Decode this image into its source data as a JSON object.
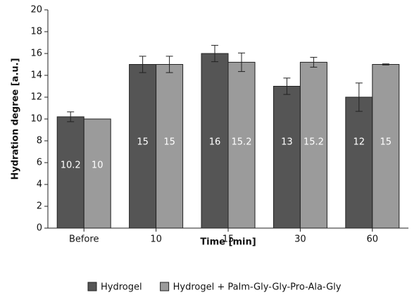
{
  "chart_data": {
    "type": "bar",
    "x_label": "Time [min]",
    "y_label": "Hydration degree [a.u.]",
    "categories": [
      "Before",
      "10",
      "15",
      "30",
      "60"
    ],
    "series": [
      {
        "name": "Hydrogel",
        "color": "#555555",
        "values": [
          10.2,
          15,
          16,
          13,
          12
        ],
        "errors": [
          0.45,
          0.75,
          0.75,
          0.75,
          1.3
        ]
      },
      {
        "name": "Hydrogel + Palm-Gly-Gly-Pro-Ala-Gly",
        "color": "#9b9b9b",
        "values": [
          10,
          15,
          15.2,
          15.2,
          15
        ],
        "errors": [
          0,
          0.75,
          0.85,
          0.45,
          0.05
        ]
      }
    ],
    "ylim": [
      0,
      20
    ],
    "yticks": [
      0,
      2,
      4,
      6,
      8,
      10,
      12,
      14,
      16,
      18,
      20
    ],
    "legend": "bottom"
  }
}
